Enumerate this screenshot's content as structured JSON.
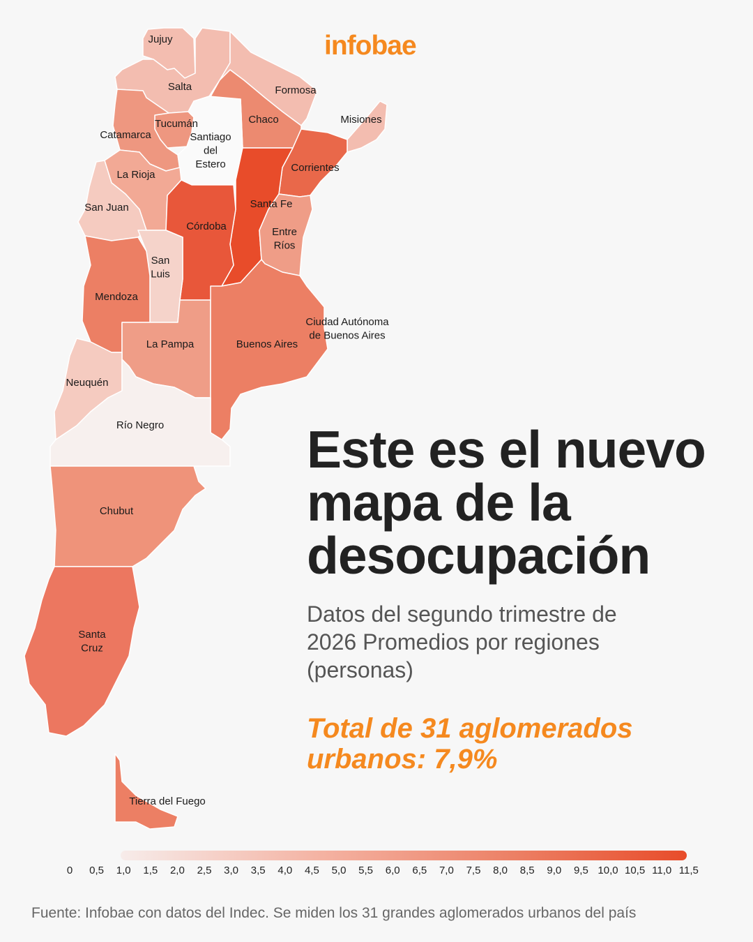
{
  "brand": "infobae",
  "title": "Este es el nuevo mapa de la desocupación",
  "subtitle": "Datos del segundo trimestre de 2026 Promedios por regiones (personas)",
  "total": "Total de 31 aglomerados urbanos: 7,9%",
  "source": "Fuente: Infobae con datos del Indec. Se miden los 31 grandes aglomerados urbanos del país",
  "scale": {
    "ticks": [
      "0",
      "0,5",
      "1,0",
      "1,5",
      "2,0",
      "2,5",
      "3,0",
      "3,5",
      "4,0",
      "4,5",
      "5,0",
      "5,5",
      "6,0",
      "6,5",
      "7,0",
      "7,5",
      "8,0",
      "8,5",
      "9,0",
      "9,5",
      "10,0",
      "10,5",
      "11,0",
      "11,5"
    ],
    "colors": [
      "#f7ecea",
      "#f4b3a3",
      "#ec7f64",
      "#e84c2a"
    ]
  },
  "provinces": [
    {
      "id": "jujuy",
      "label": [
        "Jujuy"
      ],
      "color": "#f3bdb0"
    },
    {
      "id": "salta",
      "label": [
        "Salta"
      ],
      "color": "#f3bdb0"
    },
    {
      "id": "formosa",
      "label": [
        "Formosa"
      ],
      "color": "#f3bdb0"
    },
    {
      "id": "misiones",
      "label": [
        "Misiones"
      ],
      "color": "#f3bdb0"
    },
    {
      "id": "chaco",
      "label": [
        "Chaco"
      ],
      "color": "#ec8a70"
    },
    {
      "id": "tucuman",
      "label": [
        "Tucumán"
      ],
      "color": "#ee9780"
    },
    {
      "id": "catamarca",
      "label": [
        "Catamarca"
      ],
      "color": "#ee9780"
    },
    {
      "id": "santiago",
      "label": [
        "Santiago",
        "del",
        "Estero"
      ],
      "color": "#fafafa"
    },
    {
      "id": "corrientes",
      "label": [
        "Corrientes"
      ],
      "color": "#e9684a"
    },
    {
      "id": "larioja",
      "label": [
        "La Rioja"
      ],
      "color": "#f2a995"
    },
    {
      "id": "sanjuan",
      "label": [
        "San Juan"
      ],
      "color": "#f5cbc0"
    },
    {
      "id": "santafe",
      "label": [
        "Santa Fe"
      ],
      "color": "#e84c2a"
    },
    {
      "id": "cordoba",
      "label": [
        "Córdoba"
      ],
      "color": "#e8573a"
    },
    {
      "id": "entrerios",
      "label": [
        "Entre",
        "Ríos"
      ],
      "color": "#ef9d87"
    },
    {
      "id": "sanluis",
      "label": [
        "San",
        "Luis"
      ],
      "color": "#f5d3ca"
    },
    {
      "id": "mendoza",
      "label": [
        "Mendoza"
      ],
      "color": "#ec7f64"
    },
    {
      "id": "lapampa",
      "label": [
        "La Pampa"
      ],
      "color": "#ef9d87"
    },
    {
      "id": "buenosaires",
      "label": [
        "Buenos Aires"
      ],
      "color": "#ec7f64"
    },
    {
      "id": "caba",
      "label": [
        "Ciudad Autónoma",
        "de Buenos Aires"
      ],
      "color": "#ec7f64"
    },
    {
      "id": "neuquen",
      "label": [
        "Neuquén"
      ],
      "color": "#f5cbc0"
    },
    {
      "id": "rionegro",
      "label": [
        "Río Negro"
      ],
      "color": "#f7f0ee"
    },
    {
      "id": "chubut",
      "label": [
        "Chubut"
      ],
      "color": "#ef937a"
    },
    {
      "id": "santacruz",
      "label": [
        "Santa",
        "Cruz"
      ],
      "color": "#ec7760"
    },
    {
      "id": "tierradelfuego",
      "label": [
        "Tierra del Fuego"
      ],
      "color": "#ec7f64"
    }
  ]
}
